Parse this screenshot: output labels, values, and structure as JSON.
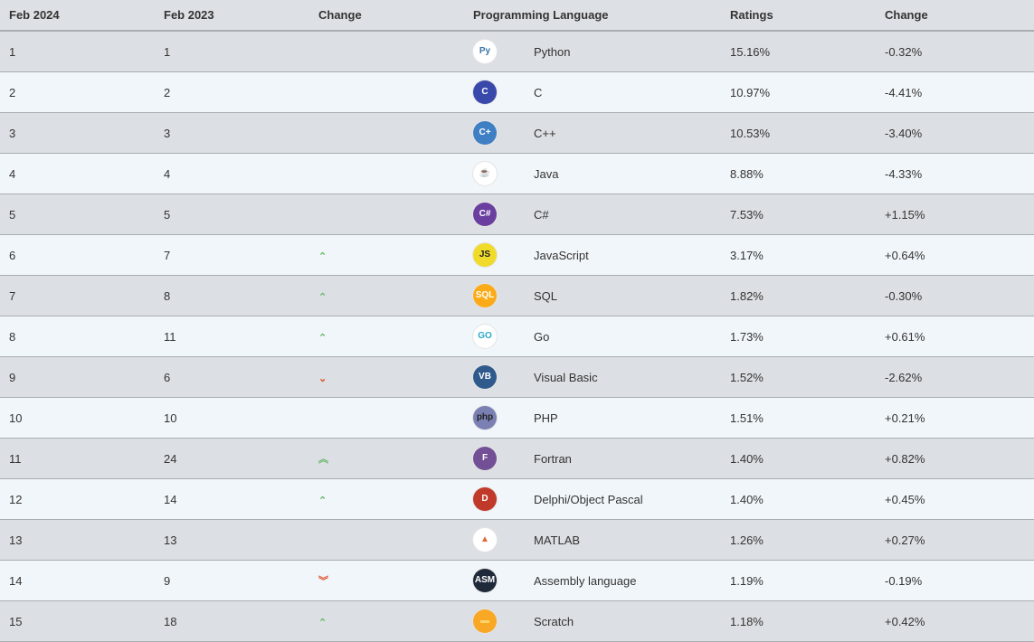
{
  "headers": [
    "Feb 2024",
    "Feb 2023",
    "Change",
    "Programming Language",
    "Ratings",
    "Change"
  ],
  "colors": {
    "up": "#6ab86a",
    "down": "#e0522a"
  },
  "rows": [
    {
      "rank": "1",
      "prev": "1",
      "trend": "",
      "icon": "python-icon",
      "icon_text": "Py",
      "icon_bg": "#ffffff",
      "icon_fg": "#3a74a8",
      "name": "Python",
      "rating": "15.16%",
      "change": "-0.32%"
    },
    {
      "rank": "2",
      "prev": "2",
      "trend": "",
      "icon": "c-icon",
      "icon_text": "C",
      "icon_bg": "#3949ab",
      "icon_fg": "#ffffff",
      "name": "C",
      "rating": "10.97%",
      "change": "-4.41%"
    },
    {
      "rank": "3",
      "prev": "3",
      "trend": "",
      "icon": "cpp-icon",
      "icon_text": "C+",
      "icon_bg": "#3f7fc4",
      "icon_fg": "#ffffff",
      "name": "C++",
      "rating": "10.53%",
      "change": "-3.40%"
    },
    {
      "rank": "4",
      "prev": "4",
      "trend": "",
      "icon": "java-icon",
      "icon_text": "☕",
      "icon_bg": "#ffffff",
      "icon_fg": "#e76f00",
      "name": "Java",
      "rating": "8.88%",
      "change": "-4.33%"
    },
    {
      "rank": "5",
      "prev": "5",
      "trend": "",
      "icon": "csharp-icon",
      "icon_text": "C#",
      "icon_bg": "#6a3fa0",
      "icon_fg": "#ffffff",
      "name": "C#",
      "rating": "7.53%",
      "change": "+1.15%"
    },
    {
      "rank": "6",
      "prev": "7",
      "trend": "up",
      "icon": "javascript-icon",
      "icon_text": "JS",
      "icon_bg": "#f0db2b",
      "icon_fg": "#222222",
      "name": "JavaScript",
      "rating": "3.17%",
      "change": "+0.64%"
    },
    {
      "rank": "7",
      "prev": "8",
      "trend": "up",
      "icon": "sql-icon",
      "icon_text": "SQL",
      "icon_bg": "#fbab18",
      "icon_fg": "#ffffff",
      "name": "SQL",
      "rating": "1.82%",
      "change": "-0.30%"
    },
    {
      "rank": "8",
      "prev": "11",
      "trend": "up",
      "icon": "go-icon",
      "icon_text": "GO",
      "icon_bg": "#ffffff",
      "icon_fg": "#2aa7c9",
      "name": "Go",
      "rating": "1.73%",
      "change": "+0.61%"
    },
    {
      "rank": "9",
      "prev": "6",
      "trend": "down",
      "icon": "visual-basic-icon",
      "icon_text": "VB",
      "icon_bg": "#2e5a8c",
      "icon_fg": "#ffffff",
      "name": "Visual Basic",
      "rating": "1.52%",
      "change": "-2.62%"
    },
    {
      "rank": "10",
      "prev": "10",
      "trend": "",
      "icon": "php-icon",
      "icon_text": "php",
      "icon_bg": "#7a80b4",
      "icon_fg": "#222222",
      "name": "PHP",
      "rating": "1.51%",
      "change": "+0.21%"
    },
    {
      "rank": "11",
      "prev": "24",
      "trend": "upup",
      "icon": "fortran-icon",
      "icon_text": "F",
      "icon_bg": "#734f96",
      "icon_fg": "#ffffff",
      "name": "Fortran",
      "rating": "1.40%",
      "change": "+0.82%"
    },
    {
      "rank": "12",
      "prev": "14",
      "trend": "up",
      "icon": "delphi-icon",
      "icon_text": "D",
      "icon_bg": "#c0392b",
      "icon_fg": "#ffffff",
      "name": "Delphi/Object Pascal",
      "rating": "1.40%",
      "change": "+0.45%"
    },
    {
      "rank": "13",
      "prev": "13",
      "trend": "",
      "icon": "matlab-icon",
      "icon_text": "▲",
      "icon_bg": "#ffffff",
      "icon_fg": "#e16737",
      "name": "MATLAB",
      "rating": "1.26%",
      "change": "+0.27%"
    },
    {
      "rank": "14",
      "prev": "9",
      "trend": "downdown",
      "icon": "assembly-icon",
      "icon_text": "ASM",
      "icon_bg": "#1e2a3a",
      "icon_fg": "#ffffff",
      "name": "Assembly language",
      "rating": "1.19%",
      "change": "-0.19%"
    },
    {
      "rank": "15",
      "prev": "18",
      "trend": "up",
      "icon": "scratch-icon",
      "icon_text": "▬",
      "icon_bg": "#f9a825",
      "icon_fg": "#ffd36b",
      "name": "Scratch",
      "rating": "1.18%",
      "change": "+0.42%"
    }
  ]
}
